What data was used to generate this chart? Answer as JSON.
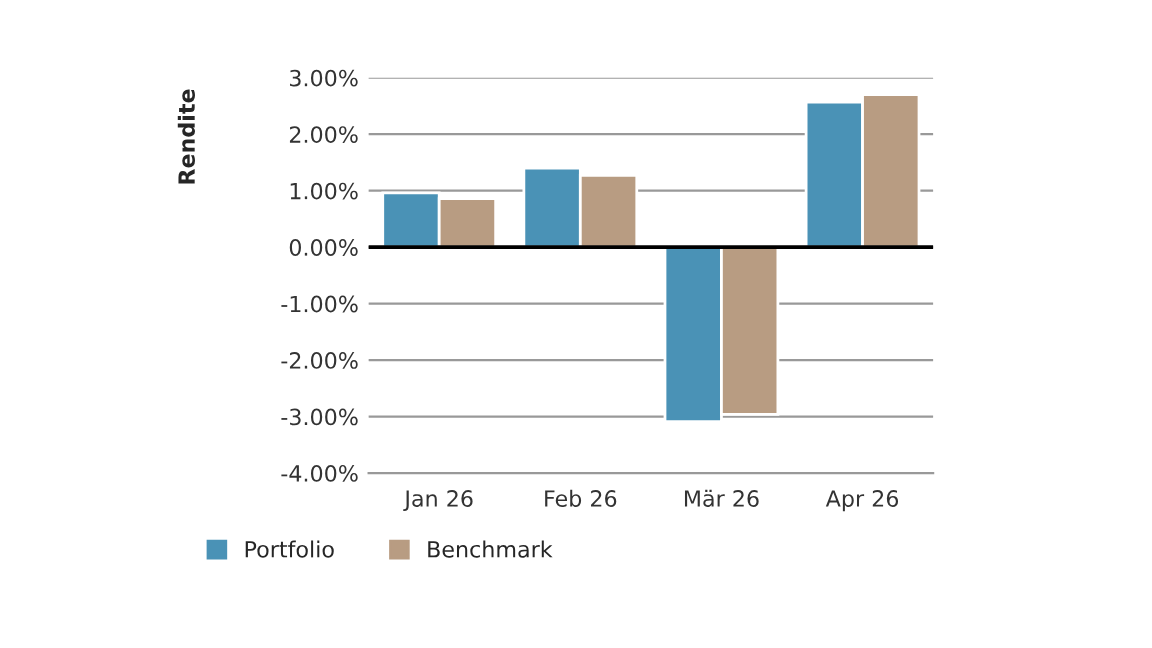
{
  "chart_data": {
    "type": "bar",
    "ylabel": "Rendite",
    "categories": [
      "Jan 26",
      "Feb 26",
      "Mär 26",
      "Apr 26"
    ],
    "series": [
      {
        "name": "Portfolio",
        "color": "#4a92b6",
        "values": [
          0.96,
          1.4,
          -3.09,
          2.57
        ]
      },
      {
        "name": "Benchmark",
        "color": "#b89c82",
        "values": [
          0.86,
          1.27,
          -2.96,
          2.7
        ]
      }
    ],
    "ylim": [
      -4,
      3
    ],
    "yticks": [
      {
        "value": -4,
        "label": "-4.00%"
      },
      {
        "value": -3,
        "label": "-3.00%"
      },
      {
        "value": -2,
        "label": "-2.00%"
      },
      {
        "value": -1,
        "label": "-1.00%"
      },
      {
        "value": 0,
        "label": "0.00%"
      },
      {
        "value": 1,
        "label": "1.00%"
      },
      {
        "value": 2,
        "label": "2.00%"
      },
      {
        "value": 3,
        "label": "3.00%"
      }
    ],
    "ref_lines": [
      {
        "axis": "y",
        "value": 0,
        "color": "#000000"
      }
    ],
    "grid": "y",
    "legend": "bottom left"
  }
}
